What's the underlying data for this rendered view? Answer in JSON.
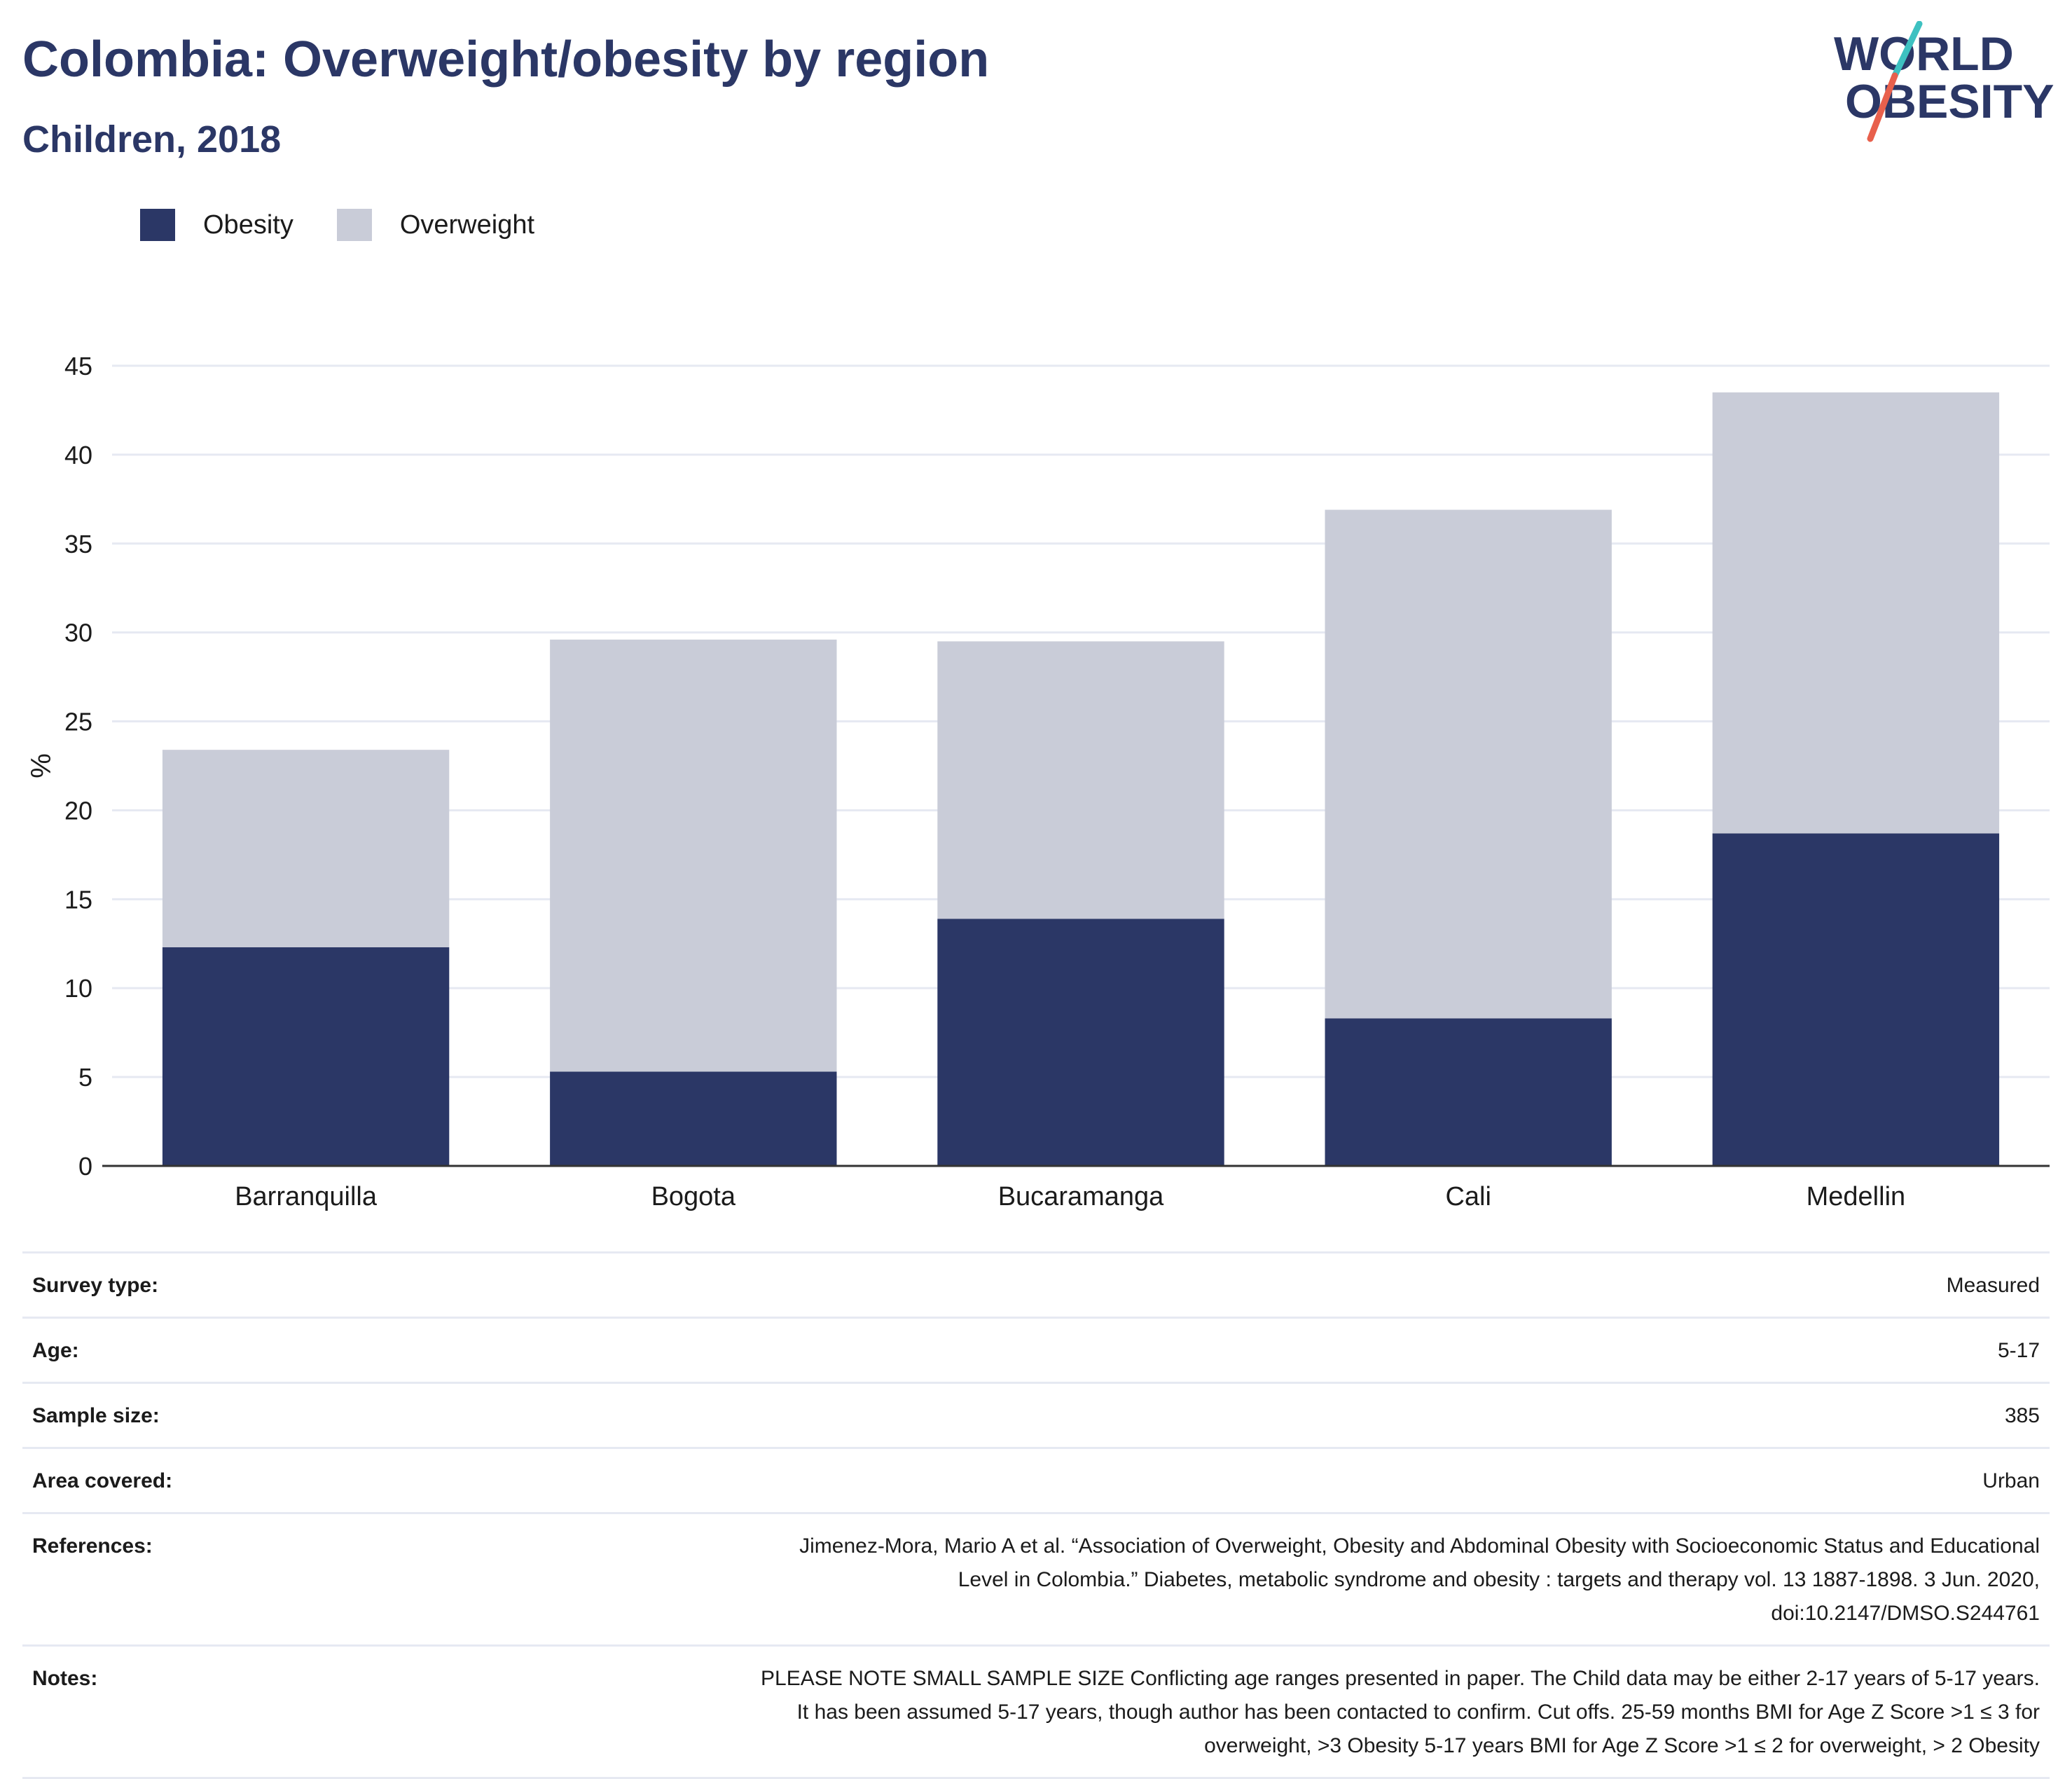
{
  "header": {
    "title": "Colombia: Overweight/obesity by region",
    "subtitle": "Children, 2018"
  },
  "logo": {
    "line1": "WORLD",
    "line2": "OBESITY",
    "colors": {
      "text": "#2b3766",
      "slash_top": "#3ec1c1",
      "slash_bottom": "#e8604c"
    }
  },
  "colors": {
    "obesity": "#2b3766",
    "overweight": "#c9ccd8",
    "grid": "#e6e9f2",
    "axis": "#333333"
  },
  "chart_data": {
    "type": "bar",
    "stacked": true,
    "categories": [
      "Barranquilla",
      "Bogota",
      "Bucaramanga",
      "Cali",
      "Medellin"
    ],
    "series": [
      {
        "name": "Obesity",
        "values": [
          12.3,
          5.3,
          13.9,
          8.3,
          18.7
        ]
      },
      {
        "name": "Overweight",
        "values": [
          11.1,
          24.3,
          15.6,
          28.6,
          24.8
        ]
      }
    ],
    "ylabel": "%",
    "ylim": [
      0,
      45
    ],
    "yticks": [
      0,
      5,
      10,
      15,
      20,
      25,
      30,
      35,
      40,
      45
    ],
    "grid": true,
    "legend": "top-left"
  },
  "info": [
    {
      "label": "Survey type:",
      "value": "Measured"
    },
    {
      "label": "Age:",
      "value": "5-17"
    },
    {
      "label": "Sample size:",
      "value": "385"
    },
    {
      "label": "Area covered:",
      "value": "Urban"
    },
    {
      "label": "References:",
      "value_lines": [
        "Jimenez-Mora, Mario A et al. “Association of Overweight, Obesity and Abdominal Obesity with Socioeconomic Status and Educational",
        "Level in Colombia.” Diabetes, metabolic syndrome and obesity : targets and therapy vol. 13 1887-1898. 3 Jun. 2020,",
        "doi:10.2147/DMSO.S244761"
      ]
    },
    {
      "label": "Notes:",
      "value_lines": [
        "PLEASE NOTE SMALL SAMPLE SIZE Conflicting age ranges presented in paper. The Child data may be either 2-17 years of 5-17 years.",
        "It has been assumed 5-17 years, though author has been contacted to confirm. Cut offs. 25-59 months BMI for Age Z Score >1 ≤ 3 for",
        "overweight, >3 Obesity 5-17 years BMI for Age Z Score >1 ≤ 2 for overweight, > 2 Obesity"
      ]
    }
  ]
}
